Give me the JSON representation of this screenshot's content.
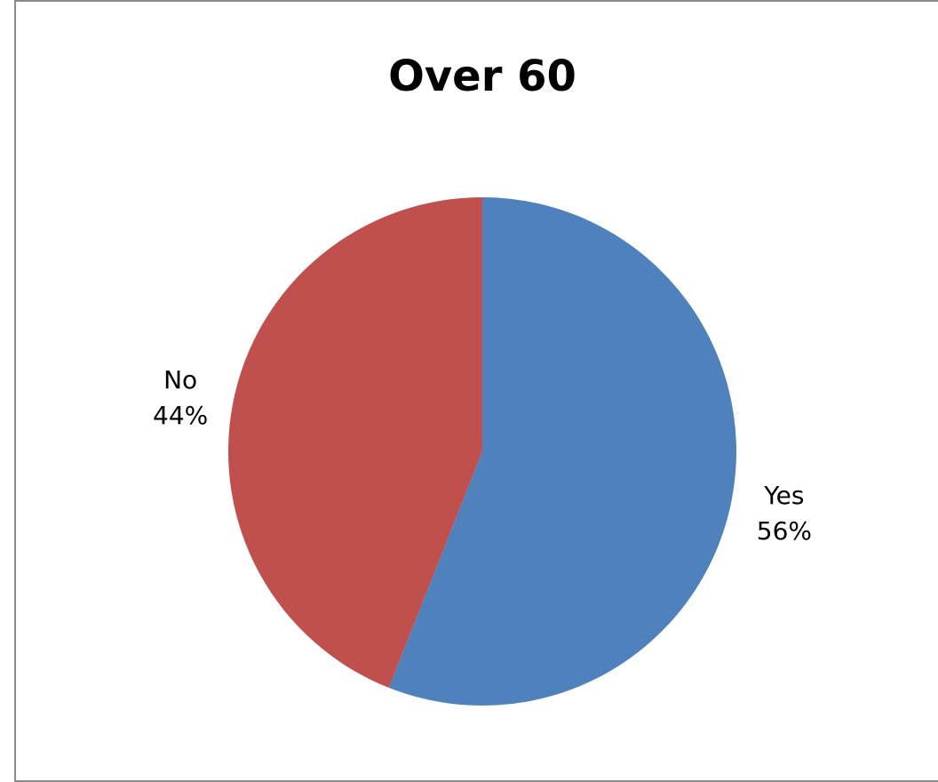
{
  "chart_data": {
    "type": "pie",
    "title": "Over 60",
    "slices": [
      {
        "label": "Yes",
        "percent_label": "56%",
        "value": 56,
        "color": "#4F81BD"
      },
      {
        "label": "No",
        "percent_label": "44%",
        "value": 44,
        "color": "#C0504D"
      }
    ],
    "start_angle_deg": 0,
    "direction": "clockwise",
    "legend": "none"
  }
}
